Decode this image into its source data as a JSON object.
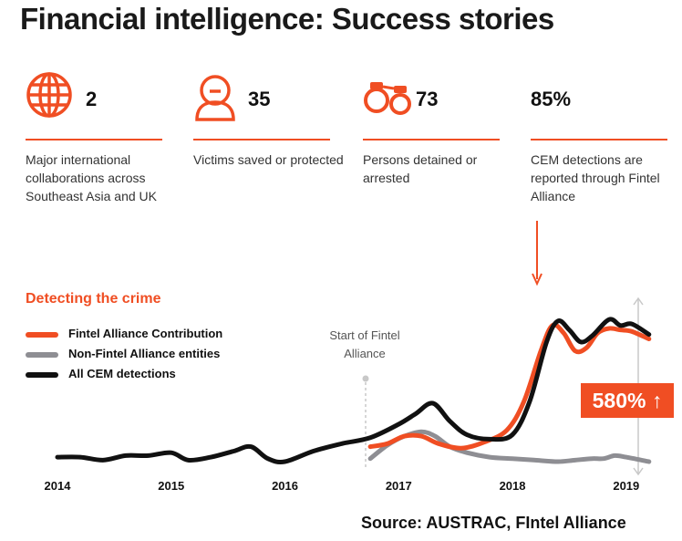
{
  "title": "Financial intelligence: Success stories",
  "stats": [
    {
      "icon": "globe-icon",
      "value": "2",
      "description": "Major international collaborations across Southeast Asia and UK"
    },
    {
      "icon": "person-icon",
      "value": "35",
      "description": "Victims saved or protected"
    },
    {
      "icon": "handcuffs-icon",
      "value": "73",
      "description": "Persons detained or arrested"
    },
    {
      "icon": "down-arrow-icon",
      "value": "85%",
      "description": "CEM detections are reported through Fintel Alliance"
    }
  ],
  "colors": {
    "accent": "#f04e23",
    "fintel": "#f04e23",
    "non_fintel": "#8e8e93",
    "all": "#111111"
  },
  "chart_data": {
    "type": "line",
    "title": "Detecting the crime",
    "xlabel": "",
    "ylabel": "",
    "x_ticks": [
      "2014",
      "2015",
      "2016",
      "2017",
      "2018",
      "2019"
    ],
    "xlim": [
      2014,
      2019.25
    ],
    "ylim": [
      0,
      100
    ],
    "grid": false,
    "legend_position": "top-left",
    "annotation_start": "Start of Fintel Alliance",
    "annotation_start_x": 2016.75,
    "growth_label": "580%",
    "growth_arrow": "↑",
    "series": [
      {
        "name": "Fintel Alliance Contribution",
        "color": "#f04e23",
        "points": [
          [
            2016.75,
            10
          ],
          [
            2016.9,
            12
          ],
          [
            2017.05,
            17
          ],
          [
            2017.2,
            17
          ],
          [
            2017.35,
            12
          ],
          [
            2017.55,
            9
          ],
          [
            2017.75,
            13
          ],
          [
            2017.95,
            21
          ],
          [
            2018.1,
            40
          ],
          [
            2018.25,
            74
          ],
          [
            2018.35,
            91
          ],
          [
            2018.45,
            86
          ],
          [
            2018.55,
            74
          ],
          [
            2018.65,
            76
          ],
          [
            2018.75,
            86
          ],
          [
            2018.85,
            89
          ],
          [
            2018.95,
            88
          ],
          [
            2019.05,
            87
          ],
          [
            2019.2,
            82
          ]
        ]
      },
      {
        "name": "Non-Fintel Alliance entities",
        "color": "#8e8e93",
        "points": [
          [
            2016.75,
            2
          ],
          [
            2016.9,
            11
          ],
          [
            2017.05,
            17
          ],
          [
            2017.2,
            20
          ],
          [
            2017.32,
            17
          ],
          [
            2017.45,
            10
          ],
          [
            2017.6,
            6
          ],
          [
            2017.8,
            3
          ],
          [
            2018.0,
            2
          ],
          [
            2018.2,
            1
          ],
          [
            2018.4,
            0
          ],
          [
            2018.55,
            1
          ],
          [
            2018.7,
            2
          ],
          [
            2018.8,
            2
          ],
          [
            2018.9,
            4
          ],
          [
            2019.0,
            3
          ],
          [
            2019.2,
            0
          ]
        ]
      },
      {
        "name": "All CEM detections",
        "color": "#111111",
        "points": [
          [
            2014.0,
            3
          ],
          [
            2014.2,
            3
          ],
          [
            2014.4,
            1
          ],
          [
            2014.6,
            4
          ],
          [
            2014.8,
            4
          ],
          [
            2015.0,
            6
          ],
          [
            2015.15,
            1
          ],
          [
            2015.35,
            3
          ],
          [
            2015.55,
            7
          ],
          [
            2015.7,
            10
          ],
          [
            2015.85,
            2
          ],
          [
            2016.0,
            0
          ],
          [
            2016.25,
            7
          ],
          [
            2016.5,
            12
          ],
          [
            2016.75,
            16
          ],
          [
            2017.0,
            25
          ],
          [
            2017.15,
            32
          ],
          [
            2017.3,
            39
          ],
          [
            2017.45,
            27
          ],
          [
            2017.6,
            18
          ],
          [
            2017.8,
            15
          ],
          [
            2018.0,
            18
          ],
          [
            2018.15,
            40
          ],
          [
            2018.3,
            80
          ],
          [
            2018.4,
            94
          ],
          [
            2018.5,
            88
          ],
          [
            2018.6,
            80
          ],
          [
            2018.7,
            84
          ],
          [
            2018.85,
            95
          ],
          [
            2018.95,
            91
          ],
          [
            2019.05,
            92
          ],
          [
            2019.2,
            85
          ]
        ]
      }
    ]
  },
  "source": "Source: AUSTRAC, FIntel Alliance"
}
